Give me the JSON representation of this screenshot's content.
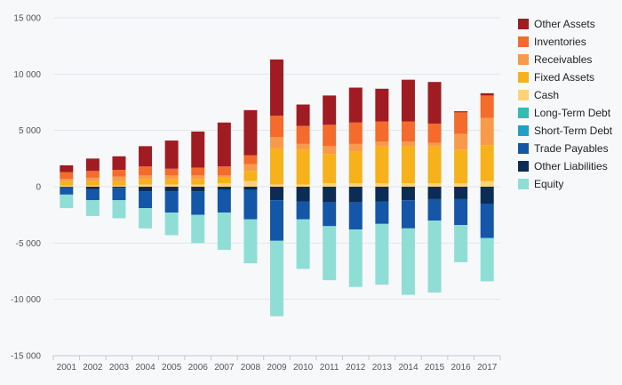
{
  "chart_data": {
    "type": "bar",
    "stacked": true,
    "categories": [
      "2001",
      "2002",
      "2003",
      "2004",
      "2005",
      "2006",
      "2007",
      "2008",
      "2009",
      "2010",
      "2011",
      "2012",
      "2013",
      "2014",
      "2015",
      "2016",
      "2017"
    ],
    "ylim": [
      -15000,
      15000
    ],
    "y_ticks": [
      15000,
      10000,
      5000,
      0,
      -5000,
      -10000,
      -15000
    ],
    "y_tick_labels": [
      "15 000",
      "10 000",
      "5 000",
      "0",
      "-5 000",
      "-10 000",
      "-15 000"
    ],
    "grid": true,
    "legend_position": "right",
    "series": [
      {
        "name": "Other Liabilities",
        "color": "#0b2d55",
        "values": [
          0,
          -200,
          -100,
          -400,
          -400,
          -400,
          -300,
          -300,
          -1200,
          -1300,
          -1400,
          -1400,
          -1300,
          -1200,
          -1100,
          -1100,
          -1500
        ]
      },
      {
        "name": "Trade Payables",
        "color": "#1456a8",
        "values": [
          -700,
          -1000,
          -1100,
          -1500,
          -1900,
          -2100,
          -2000,
          -2600,
          -3600,
          -1600,
          -2100,
          -2400,
          -2000,
          -2500,
          -1900,
          -2300,
          -3000
        ]
      },
      {
        "name": "Short-Term Debt",
        "color": "#1fa0c8",
        "values": [
          0,
          0,
          0,
          0,
          0,
          0,
          0,
          0,
          0,
          0,
          0,
          0,
          0,
          0,
          0,
          0,
          -100
        ]
      },
      {
        "name": "Long-Term Debt",
        "color": "#2fbfb0",
        "values": [
          0,
          0,
          0,
          0,
          0,
          0,
          0,
          0,
          0,
          0,
          0,
          0,
          0,
          0,
          0,
          0,
          0
        ]
      },
      {
        "name": "Equity",
        "color": "#8fded6",
        "values": [
          -1200,
          -1400,
          -1600,
          -1800,
          -2000,
          -2500,
          -3300,
          -3900,
          -6700,
          -4400,
          -4800,
          -5100,
          -5400,
          -5900,
          -6400,
          -3300,
          -3800
        ]
      },
      {
        "name": "Cash",
        "color": "#ffd27a",
        "values": [
          100,
          100,
          100,
          200,
          200,
          200,
          300,
          500,
          200,
          200,
          300,
          300,
          300,
          300,
          300,
          300,
          500
        ]
      },
      {
        "name": "Fixed Assets",
        "color": "#f7b11a",
        "values": [
          400,
          400,
          400,
          500,
          500,
          500,
          500,
          900,
          3200,
          3100,
          2600,
          2800,
          3300,
          3300,
          3300,
          3000,
          3200
        ]
      },
      {
        "name": "Receivables",
        "color": "#f99a4a",
        "values": [
          200,
          300,
          400,
          300,
          300,
          300,
          200,
          600,
          1000,
          500,
          700,
          700,
          400,
          400,
          300,
          1400,
          2400
        ]
      },
      {
        "name": "Inventories",
        "color": "#f46b2c",
        "values": [
          600,
          600,
          600,
          800,
          600,
          700,
          800,
          800,
          1900,
          1600,
          1900,
          1900,
          1800,
          1800,
          1700,
          1900,
          2000
        ]
      },
      {
        "name": "Other Assets",
        "color": "#a01c22",
        "values": [
          600,
          1100,
          1200,
          1800,
          2500,
          3200,
          3900,
          4000,
          5000,
          1900,
          2600,
          3100,
          2900,
          3700,
          3700,
          100,
          200
        ]
      }
    ]
  },
  "legend_items": [
    {
      "label": "Other Assets",
      "color": "#a01c22"
    },
    {
      "label": "Inventories",
      "color": "#f46b2c"
    },
    {
      "label": "Receivables",
      "color": "#f99a4a"
    },
    {
      "label": "Fixed Assets",
      "color": "#f7b11a"
    },
    {
      "label": "Cash",
      "color": "#ffd27a"
    },
    {
      "label": "Long-Term Debt",
      "color": "#2fbfb0"
    },
    {
      "label": "Short-Term Debt",
      "color": "#1fa0c8"
    },
    {
      "label": "Trade Payables",
      "color": "#1456a8"
    },
    {
      "label": "Other Liabilities",
      "color": "#0b2d55"
    },
    {
      "label": "Equity",
      "color": "#8fded6"
    }
  ]
}
